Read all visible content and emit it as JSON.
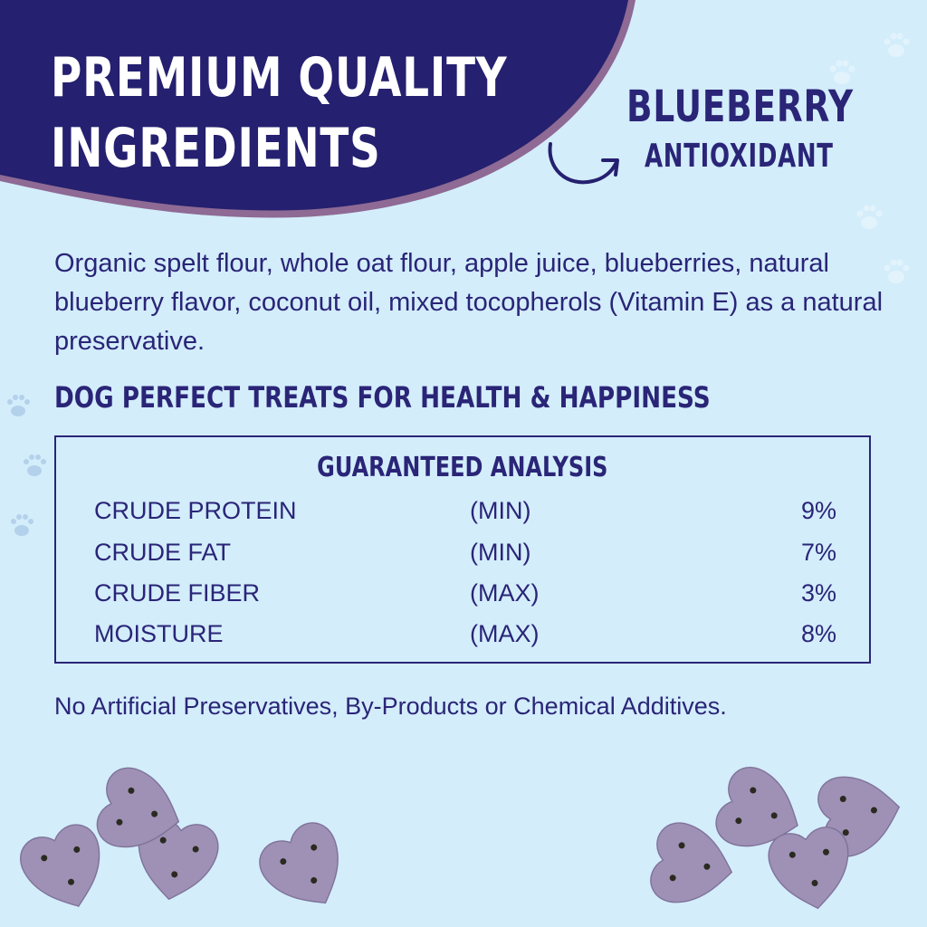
{
  "header": {
    "headline_line1": "PREMIUM QUALITY",
    "headline_line2": "INGREDIENTS",
    "tag_line1": "BLUEBERRY",
    "tag_line2": "ANTIOXIDANT"
  },
  "ingredients": "Organic spelt flour, whole oat flour, apple juice, blueberries, natural blueberry flavor, coconut oil, mixed tocopherols (Vitamin E) as a natural preservative.",
  "subheading": "DOG PERFECT TREATS FOR HEALTH & HAPPINESS",
  "analysis": {
    "title": "GUARANTEED ANALYSIS",
    "rows": [
      {
        "name": "CRUDE PROTEIN",
        "qualifier": "(MIN)",
        "value": "9%"
      },
      {
        "name": "CRUDE FAT",
        "qualifier": "(MIN)",
        "value": "7%"
      },
      {
        "name": "CRUDE FIBER",
        "qualifier": "(MAX)",
        "value": "3%"
      },
      {
        "name": "MOISTURE",
        "qualifier": "(MAX)",
        "value": "8%"
      }
    ]
  },
  "footer": "No Artificial Preservatives, By-Products or Chemical Additives.",
  "colors": {
    "background": "#d3edfb",
    "navy": "#25206f",
    "blob_edge": "#8e6a94",
    "treat": "#9e91b5"
  },
  "icons": [
    "arrow-icon",
    "paw-print-icon",
    "heart-treat-image"
  ]
}
